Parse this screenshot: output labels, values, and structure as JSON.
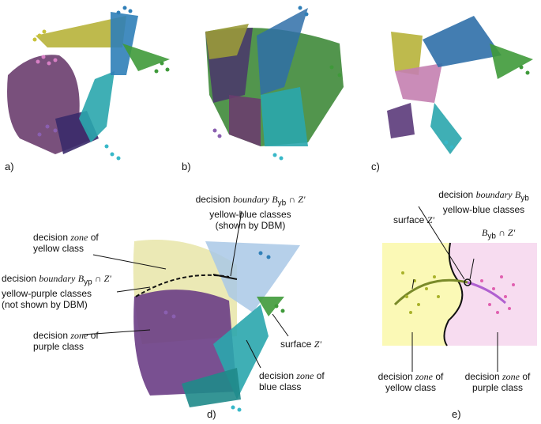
{
  "panels": {
    "a": "a)",
    "b": "b)",
    "c": "c)",
    "d": "d)",
    "e": "e)"
  },
  "panel_d": {
    "zone_yellow_1": "decision",
    "zone_yellow_2": "zone",
    "zone_yellow_3": "of",
    "zone_yellow_4": "yellow class",
    "boundary_yb_1": "decision",
    "boundary_yb_2": "boundary",
    "boundary_yb_sym": "B",
    "boundary_yb_sub": "yb",
    "boundary_yb_cap": "∩ Z'",
    "boundary_yb_3": "yellow-blue classes",
    "boundary_yb_4": "(shown by DBM)",
    "boundary_yp_1": "decision",
    "boundary_yp_2": "boundary",
    "boundary_yp_sym": "B",
    "boundary_yp_sub": "yp",
    "boundary_yp_cap": "∩ Z'",
    "boundary_yp_3": "yellow-purple classes",
    "boundary_yp_4": "(not shown by DBM)",
    "zone_purple_1": "decision",
    "zone_purple_2": "zone",
    "zone_purple_3": "of",
    "zone_purple_4": "purple class",
    "surface_1": "surface",
    "surface_2": "Z'",
    "zone_blue_1": "decision",
    "zone_blue_2": "zone",
    "zone_blue_3": "of",
    "zone_blue_4": "blue class"
  },
  "panel_e": {
    "boundary_1": "decision",
    "boundary_2": "boundary",
    "boundary_sym": "B",
    "boundary_sub": "yb",
    "boundary_3": "yellow-blue classes",
    "surface_1": "surface",
    "surface_2": "Z'",
    "cap_sym": "B",
    "cap_sub": "yb",
    "cap_rest": "∩ Z'",
    "zone_yellow_1": "decision",
    "zone_yellow_2": "zone",
    "zone_yellow_3": "of",
    "zone_yellow_4": "yellow class",
    "zone_purple_1": "decision",
    "zone_purple_2": "zone",
    "zone_purple_3": "of",
    "zone_purple_4": "purple class"
  },
  "colors": {
    "yellow": "#c8c23a",
    "purple": "#5b3a7a",
    "blue": "#2f7fb8",
    "cyan": "#38b8c8",
    "green": "#3f9a3a",
    "pink": "#d77fc4",
    "plum": "#8a4f6f"
  }
}
